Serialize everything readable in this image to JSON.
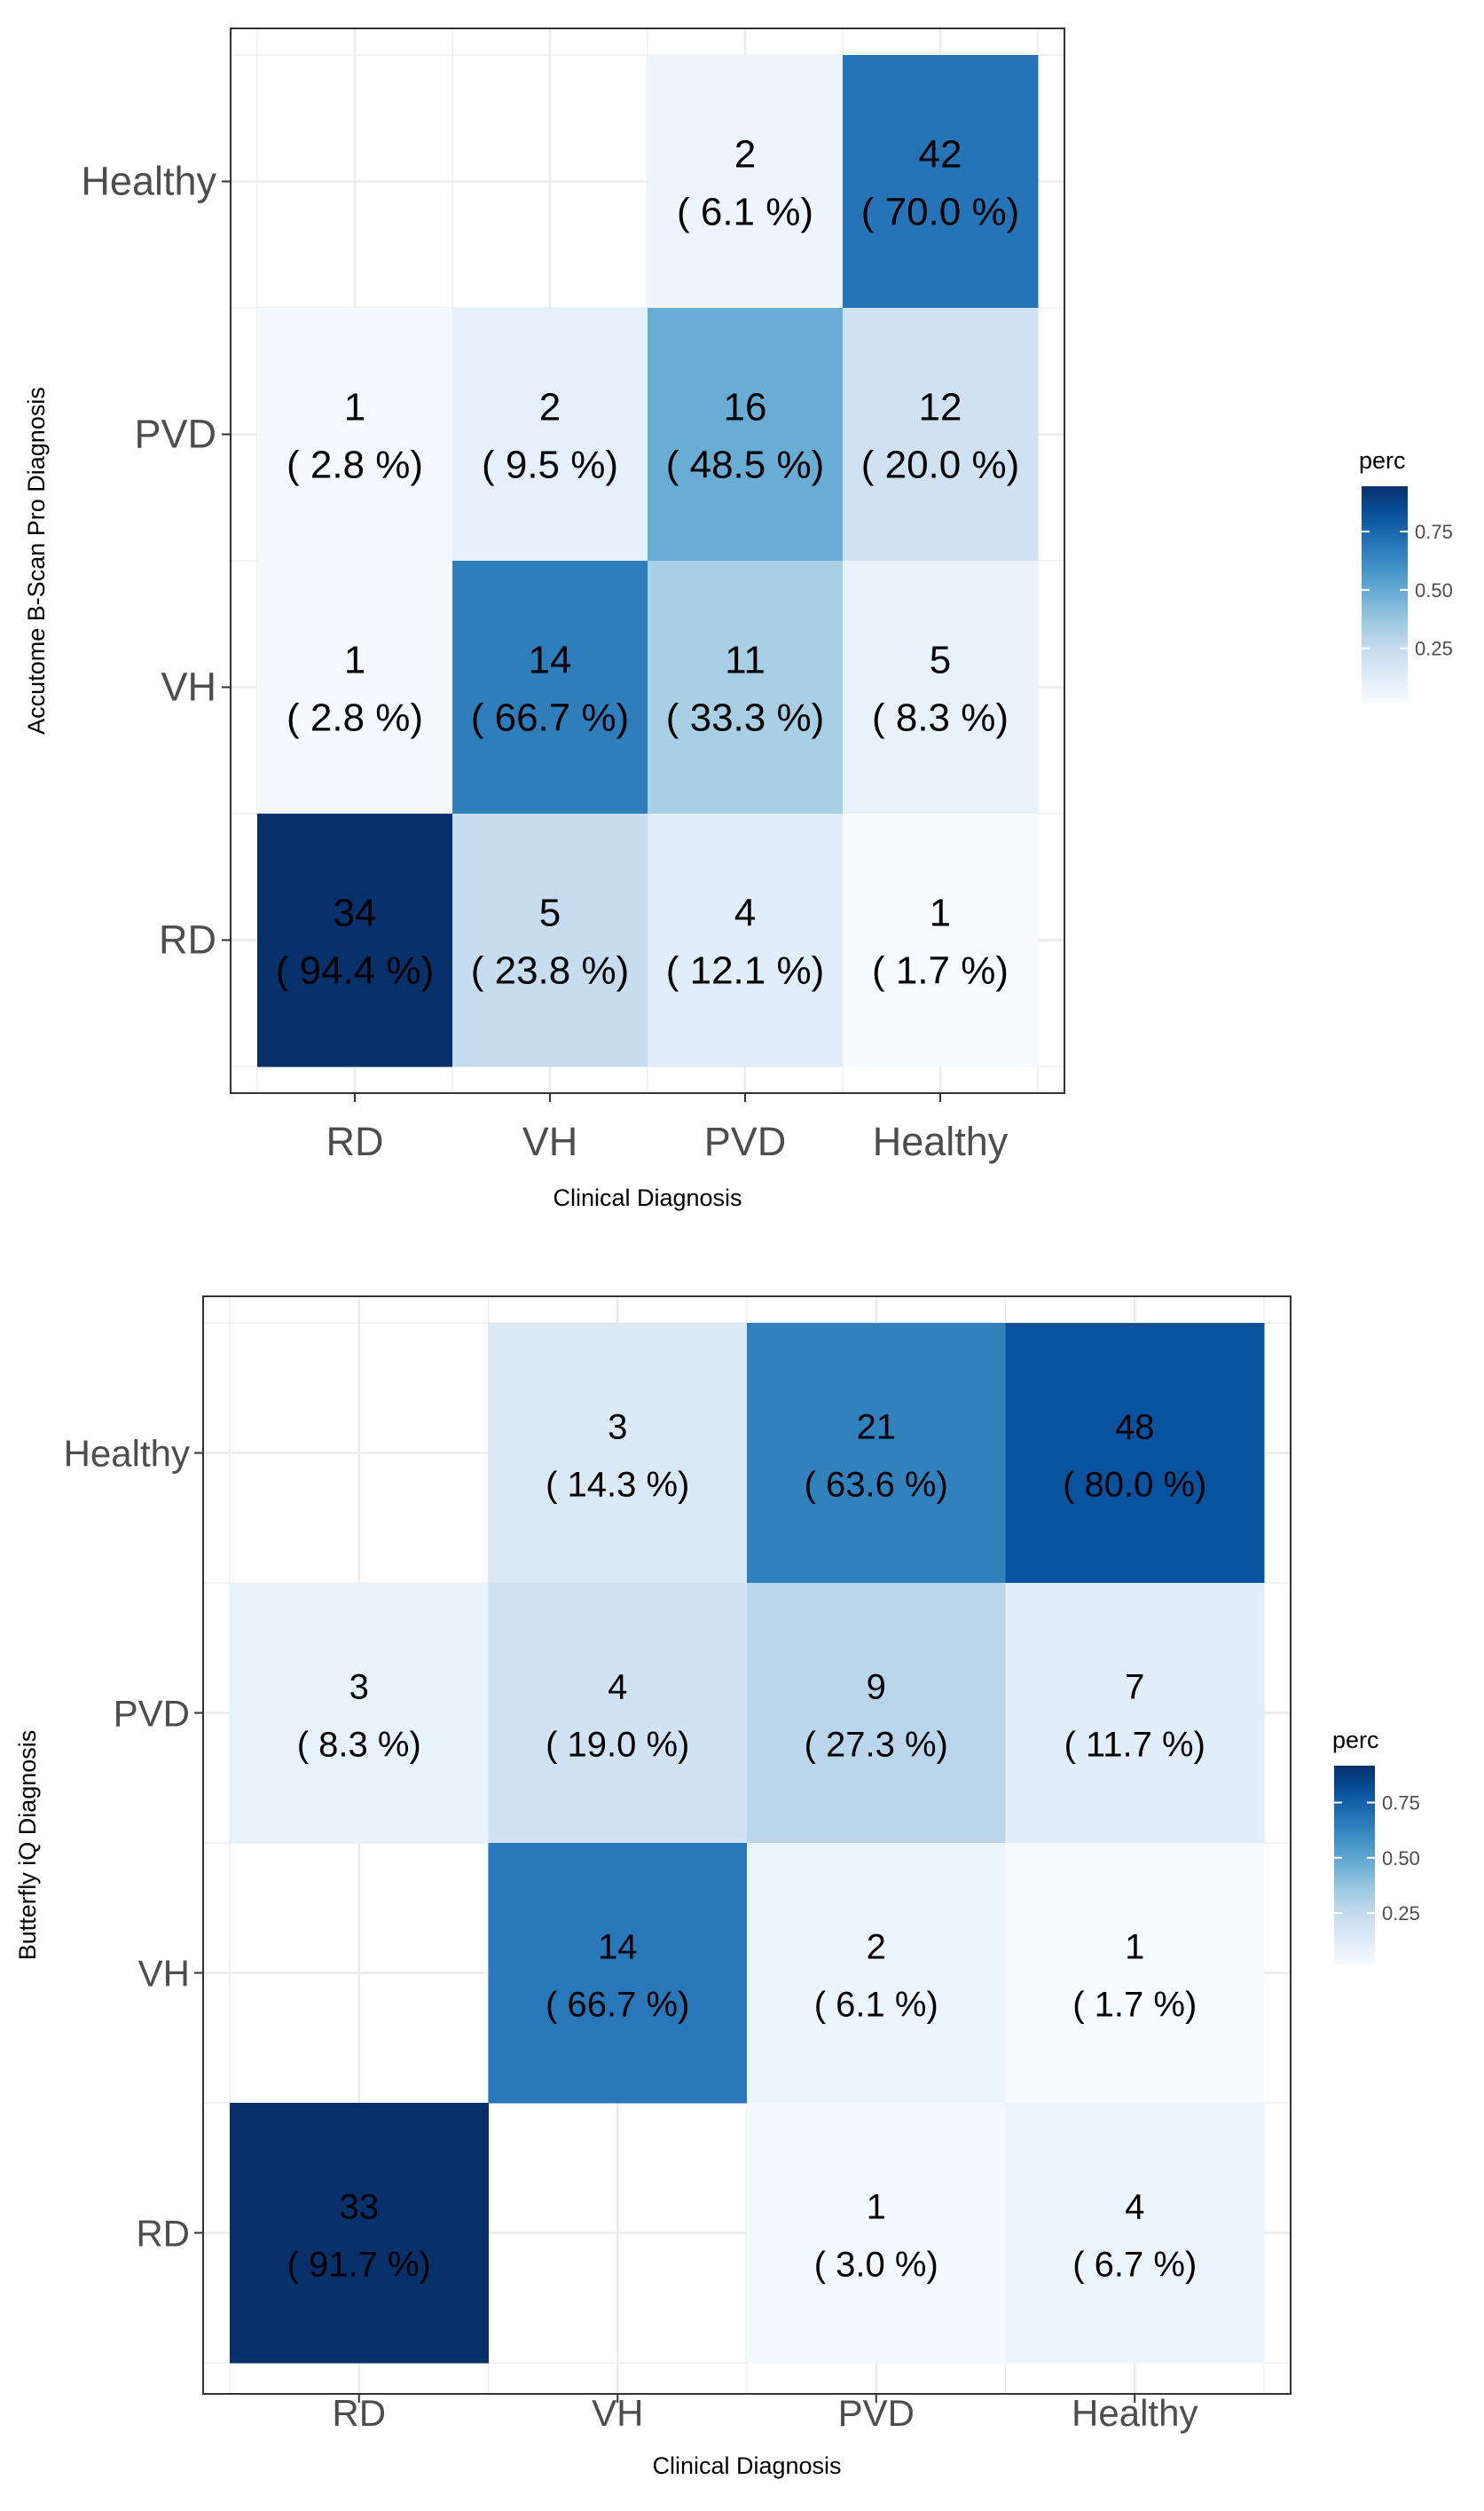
{
  "chart_data": [
    {
      "type": "heatmap",
      "title": "",
      "xlabel": "Clinical Diagnosis",
      "ylabel": "Accutome B-Scan Pro Diagnosis",
      "x_categories": [
        "RD",
        "VH",
        "PVD",
        "Healthy"
      ],
      "y_categories": [
        "RD",
        "VH",
        "PVD",
        "Healthy"
      ],
      "cells": [
        {
          "x": "PVD",
          "y": "Healthy",
          "count": "2",
          "pct_label": "( 6.1 %)",
          "perc": 0.061
        },
        {
          "x": "Healthy",
          "y": "Healthy",
          "count": "42",
          "pct_label": "( 70.0 %)",
          "perc": 0.7
        },
        {
          "x": "RD",
          "y": "PVD",
          "count": "1",
          "pct_label": "( 2.8 %)",
          "perc": 0.028
        },
        {
          "x": "VH",
          "y": "PVD",
          "count": "2",
          "pct_label": "( 9.5 %)",
          "perc": 0.095
        },
        {
          "x": "PVD",
          "y": "PVD",
          "count": "16",
          "pct_label": "( 48.5 %)",
          "perc": 0.485
        },
        {
          "x": "Healthy",
          "y": "PVD",
          "count": "12",
          "pct_label": "( 20.0 %)",
          "perc": 0.2
        },
        {
          "x": "RD",
          "y": "VH",
          "count": "1",
          "pct_label": "( 2.8 %)",
          "perc": 0.028
        },
        {
          "x": "VH",
          "y": "VH",
          "count": "14",
          "pct_label": "( 66.7 %)",
          "perc": 0.667
        },
        {
          "x": "PVD",
          "y": "VH",
          "count": "11",
          "pct_label": "( 33.3 %)",
          "perc": 0.333
        },
        {
          "x": "Healthy",
          "y": "VH",
          "count": "5",
          "pct_label": "( 8.3 %)",
          "perc": 0.083
        },
        {
          "x": "RD",
          "y": "RD",
          "count": "34",
          "pct_label": "( 94.4 %)",
          "perc": 0.944
        },
        {
          "x": "VH",
          "y": "RD",
          "count": "5",
          "pct_label": "( 23.8 %)",
          "perc": 0.238
        },
        {
          "x": "PVD",
          "y": "RD",
          "count": "4",
          "pct_label": "( 12.1 %)",
          "perc": 0.121
        },
        {
          "x": "Healthy",
          "y": "RD",
          "count": "1",
          "pct_label": "( 1.7 %)",
          "perc": 0.017
        }
      ],
      "legend": {
        "title": "perc",
        "ticks": [
          "0.25",
          "0.50",
          "0.75"
        ],
        "tick_values": [
          0.25,
          0.5,
          0.75
        ],
        "range": [
          0.017,
          0.944
        ],
        "position": "right"
      }
    },
    {
      "type": "heatmap",
      "title": "",
      "xlabel": "Clinical Diagnosis",
      "ylabel": "Butterfly iQ Diagnosis",
      "x_categories": [
        "RD",
        "VH",
        "PVD",
        "Healthy"
      ],
      "y_categories": [
        "RD",
        "VH",
        "PVD",
        "Healthy"
      ],
      "cells": [
        {
          "x": "VH",
          "y": "Healthy",
          "count": "3",
          "pct_label": "( 14.3 %)",
          "perc": 0.143
        },
        {
          "x": "PVD",
          "y": "Healthy",
          "count": "21",
          "pct_label": "( 63.6 %)",
          "perc": 0.636
        },
        {
          "x": "Healthy",
          "y": "Healthy",
          "count": "48",
          "pct_label": "( 80.0 %)",
          "perc": 0.8
        },
        {
          "x": "RD",
          "y": "PVD",
          "count": "3",
          "pct_label": "( 8.3 %)",
          "perc": 0.083
        },
        {
          "x": "VH",
          "y": "PVD",
          "count": "4",
          "pct_label": "( 19.0 %)",
          "perc": 0.19
        },
        {
          "x": "PVD",
          "y": "PVD",
          "count": "9",
          "pct_label": "( 27.3 %)",
          "perc": 0.273
        },
        {
          "x": "Healthy",
          "y": "PVD",
          "count": "7",
          "pct_label": "( 11.7 %)",
          "perc": 0.117
        },
        {
          "x": "VH",
          "y": "VH",
          "count": "14",
          "pct_label": "( 66.7 %)",
          "perc": 0.667
        },
        {
          "x": "PVD",
          "y": "VH",
          "count": "2",
          "pct_label": "( 6.1 %)",
          "perc": 0.061
        },
        {
          "x": "Healthy",
          "y": "VH",
          "count": "1",
          "pct_label": "( 1.7 %)",
          "perc": 0.017
        },
        {
          "x": "RD",
          "y": "RD",
          "count": "33",
          "pct_label": "( 91.7 %)",
          "perc": 0.917
        },
        {
          "x": "PVD",
          "y": "RD",
          "count": "1",
          "pct_label": "( 3.0 %)",
          "perc": 0.03
        },
        {
          "x": "Healthy",
          "y": "RD",
          "count": "4",
          "pct_label": "( 6.7 %)",
          "perc": 0.067
        }
      ],
      "legend": {
        "title": "perc",
        "ticks": [
          "0.25",
          "0.50",
          "0.75"
        ],
        "tick_values": [
          0.25,
          0.5,
          0.75
        ],
        "range": [
          0.017,
          0.917
        ],
        "position": "right"
      }
    }
  ],
  "colors": {
    "scale": [
      "#f7fbff",
      "#deebf7",
      "#c6dbef",
      "#9ecae1",
      "#6baed6",
      "#4292c6",
      "#2171b5",
      "#08519c",
      "#08306b"
    ],
    "grid": "#ebebeb",
    "panel_border": "#333333",
    "axis_text": "#4d4d4d",
    "label_text": "#000000"
  }
}
